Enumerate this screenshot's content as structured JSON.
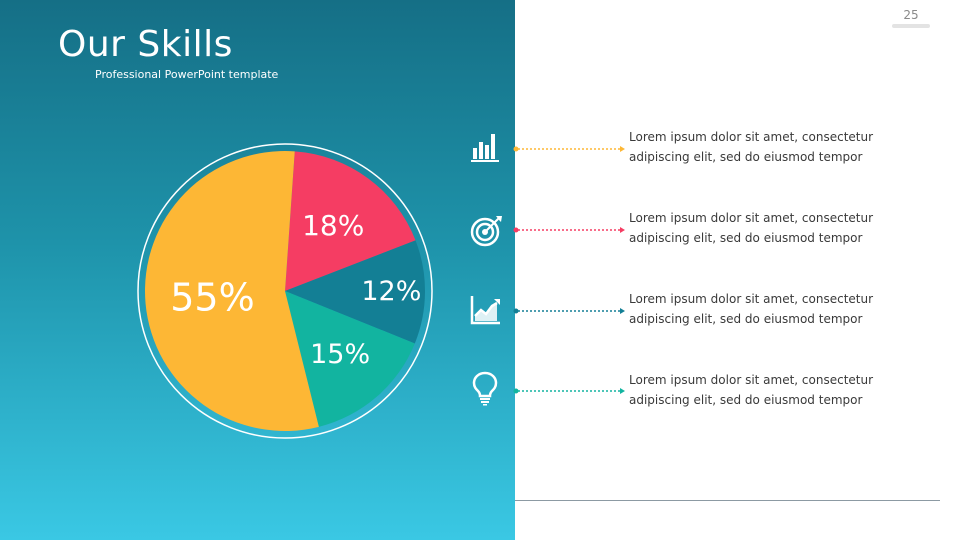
{
  "slide": {
    "title": "Our Skills",
    "subtitle": "Professional PowerPoint template",
    "page_number": "25"
  },
  "colors": {
    "yellow": "#fdb735",
    "red": "#f53d63",
    "teal": "#137f95",
    "green": "#12b4a0",
    "background_top": "#156f86",
    "background_bottom": "#3ac8e4"
  },
  "chart_data": {
    "type": "pie",
    "slices": [
      {
        "label": "18%",
        "value": 18,
        "color": "#f53d63"
      },
      {
        "label": "12%",
        "value": 12,
        "color": "#137f95"
      },
      {
        "label": "15%",
        "value": 15,
        "color": "#12b4a0"
      },
      {
        "label": "55%",
        "value": 55,
        "color": "#fdb735"
      }
    ],
    "title": "",
    "legend": "none"
  },
  "items": [
    {
      "icon": "bar-chart-icon",
      "color": "#fdb735",
      "line1": "Lorem ipsum dolor sit amet, consectetur",
      "line2": "adipiscing elit, sed do eiusmod tempor"
    },
    {
      "icon": "target-icon",
      "color": "#f53d63",
      "line1": "Lorem ipsum dolor sit amet, consectetur",
      "line2": "adipiscing elit, sed do eiusmod tempor"
    },
    {
      "icon": "growth-chart-icon",
      "color": "#137f95",
      "line1": "Lorem ipsum dolor sit amet, consectetur",
      "line2": "adipiscing elit, sed do eiusmod tempor"
    },
    {
      "icon": "lightbulb-icon",
      "color": "#12b4a0",
      "line1": "Lorem ipsum dolor sit amet, consectetur",
      "line2": "adipiscing elit, sed do eiusmod tempor"
    }
  ]
}
